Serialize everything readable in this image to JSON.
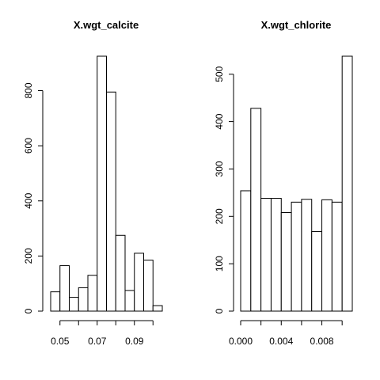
{
  "chart_data": [
    {
      "type": "histogram",
      "title": "X.wgt_calcite",
      "bins": [
        0.045,
        0.05,
        0.055,
        0.06,
        0.065,
        0.07,
        0.075,
        0.08,
        0.085,
        0.09,
        0.095,
        0.1,
        0.105
      ],
      "values": [
        70,
        165,
        50,
        85,
        130,
        925,
        795,
        275,
        75,
        210,
        185,
        20
      ],
      "color": "#ffffff",
      "xlim": [
        0.045,
        0.105
      ],
      "xticks": [
        0.05,
        0.07,
        0.09
      ],
      "xminorticks": [
        0.06,
        0.08,
        0.1
      ],
      "ylim": [
        0,
        925
      ],
      "yticks": [
        0,
        200,
        400,
        600,
        800
      ]
    },
    {
      "type": "histogram",
      "title": "X.wgt_chlorite",
      "bins": [
        0,
        0.001,
        0.002,
        0.003,
        0.004,
        0.005,
        0.006,
        0.007,
        0.008,
        0.009,
        0.01,
        0.011
      ],
      "values": [
        254,
        428,
        238,
        238,
        208,
        230,
        236,
        168,
        235,
        230,
        538
      ],
      "color": "#ffffff",
      "xlim": [
        0,
        0.011
      ],
      "xticks": [
        {
          "value": 0,
          "label": "0.000"
        },
        {
          "value": 0.004,
          "label": "0.004"
        },
        {
          "value": 0.008,
          "label": "0.008"
        }
      ],
      "xminorticks": [
        0.002,
        0.006,
        0.01
      ],
      "ylim": [
        0,
        538
      ],
      "yticks": [
        0,
        100,
        200,
        300,
        400,
        500
      ]
    }
  ]
}
